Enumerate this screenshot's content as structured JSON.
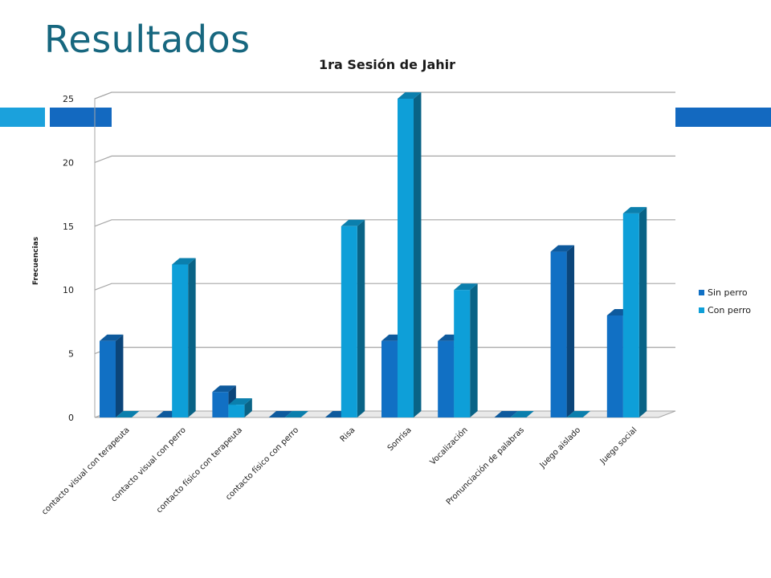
{
  "slide": {
    "title": "Resultados"
  },
  "chart_data": {
    "type": "bar",
    "title": "1ra Sesión de Jahir",
    "ylabel": "Frecuencias",
    "xlabel": "",
    "ylim": [
      0,
      25
    ],
    "yticks": [
      0,
      5,
      10,
      15,
      20,
      25
    ],
    "grid": true,
    "legend_position": "right",
    "categories": [
      "contacto visual con terapeuta",
      "contacto visual con perro",
      "contacto físico con terapeuta",
      "contacto físico con perro",
      "Risa",
      "Sonrisa",
      "Vocalización",
      "Pronunciación de palabras",
      "Juego aislado",
      "Juego social"
    ],
    "series": [
      {
        "name": "Sin perro",
        "color": "#1170c4",
        "values": [
          6,
          0,
          2,
          0,
          0,
          6,
          6,
          0,
          13,
          8
        ]
      },
      {
        "name": "Con perro",
        "color": "#0e9fd8",
        "values": [
          0,
          12,
          1,
          0,
          15,
          25,
          10,
          0,
          0,
          16
        ]
      }
    ]
  }
}
